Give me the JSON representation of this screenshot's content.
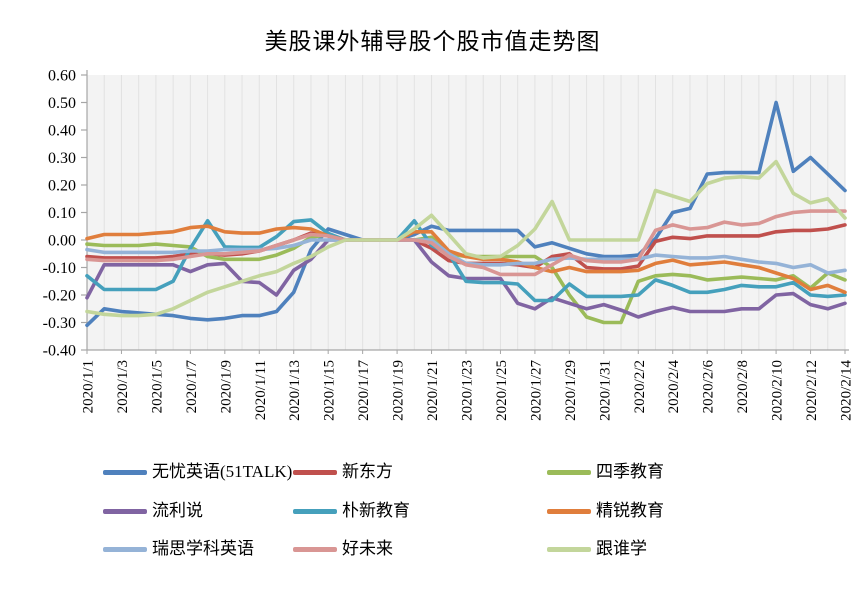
{
  "title": "美股课外辅导股个股市值走势图",
  "chart_data": {
    "type": "line",
    "title": "美股课外辅导股个股市值走势图",
    "xlabel": "",
    "ylabel": "",
    "ylim": [
      -0.4,
      0.6
    ],
    "y_ticks": [
      0.6,
      0.5,
      0.4,
      0.3,
      0.2,
      0.1,
      0.0,
      -0.1,
      -0.2,
      -0.3,
      -0.4
    ],
    "y_tick_labels": [
      "0.60",
      "0.50",
      "0.40",
      "0.30",
      "0.20",
      "0.10",
      "0.00",
      "-0.10",
      "-0.20",
      "-0.30",
      "-0.40"
    ],
    "grid": "vertical-only",
    "legend_position": "bottom",
    "x_label_every": 2,
    "x": [
      "2020/1/1",
      "2020/1/2",
      "2020/1/3",
      "2020/1/4",
      "2020/1/5",
      "2020/1/6",
      "2020/1/7",
      "2020/1/8",
      "2020/1/9",
      "2020/1/10",
      "2020/1/11",
      "2020/1/12",
      "2020/1/13",
      "2020/1/14",
      "2020/1/15",
      "2020/1/16",
      "2020/1/17",
      "2020/1/18",
      "2020/1/19",
      "2020/1/20",
      "2020/1/21",
      "2020/1/22",
      "2020/1/23",
      "2020/1/24",
      "2020/1/25",
      "2020/1/26",
      "2020/1/27",
      "2020/1/28",
      "2020/1/29",
      "2020/1/30",
      "2020/1/31",
      "2020/2/1",
      "2020/2/2",
      "2020/2/3",
      "2020/2/4",
      "2020/2/5",
      "2020/2/6",
      "2020/2/7",
      "2020/2/8",
      "2020/2/9",
      "2020/2/10",
      "2020/2/11",
      "2020/2/12",
      "2020/2/13",
      "2020/2/14"
    ],
    "series": [
      {
        "name": "无忧英语(51TALK)",
        "color": "#4F81BD",
        "values": [
          -0.31,
          -0.25,
          -0.26,
          -0.265,
          -0.27,
          -0.275,
          -0.285,
          -0.29,
          -0.285,
          -0.275,
          -0.275,
          -0.26,
          -0.19,
          -0.035,
          0.04,
          0.02,
          0,
          0,
          0,
          0.02,
          0.05,
          0.035,
          0.035,
          0.035,
          0.035,
          0.035,
          -0.025,
          -0.01,
          -0.03,
          -0.05,
          -0.06,
          -0.06,
          -0.055,
          0.005,
          0.1,
          0.115,
          0.24,
          0.245,
          0.245,
          0.245,
          0.5,
          0.25,
          0.3,
          0.24,
          0.18
        ]
      },
      {
        "name": "新东方",
        "color": "#C0504D",
        "values": [
          -0.06,
          -0.065,
          -0.065,
          -0.065,
          -0.065,
          -0.06,
          -0.05,
          -0.05,
          -0.055,
          -0.05,
          -0.04,
          -0.02,
          0.0,
          0.025,
          0.015,
          0,
          0,
          0,
          0,
          0,
          -0.03,
          -0.075,
          -0.085,
          -0.085,
          -0.085,
          -0.09,
          -0.1,
          -0.06,
          -0.05,
          -0.1,
          -0.105,
          -0.105,
          -0.095,
          -0.005,
          0.01,
          0.005,
          0.015,
          0.015,
          0.015,
          0.015,
          0.03,
          0.035,
          0.035,
          0.04,
          0.055
        ]
      },
      {
        "name": "四季教育",
        "color": "#9BBB59",
        "values": [
          -0.015,
          -0.02,
          -0.02,
          -0.02,
          -0.015,
          -0.02,
          -0.025,
          -0.06,
          -0.07,
          -0.07,
          -0.07,
          -0.055,
          -0.03,
          0.01,
          0.02,
          0,
          0,
          0,
          0,
          0,
          0.01,
          -0.05,
          -0.06,
          -0.06,
          -0.06,
          -0.06,
          -0.06,
          -0.1,
          -0.2,
          -0.28,
          -0.3,
          -0.3,
          -0.15,
          -0.13,
          -0.125,
          -0.13,
          -0.145,
          -0.14,
          -0.135,
          -0.14,
          -0.145,
          -0.13,
          -0.175,
          -0.12,
          -0.145
        ]
      },
      {
        "name": "流利说",
        "color": "#8064A2",
        "values": [
          -0.21,
          -0.09,
          -0.09,
          -0.09,
          -0.09,
          -0.09,
          -0.115,
          -0.09,
          -0.085,
          -0.15,
          -0.155,
          -0.2,
          -0.11,
          -0.07,
          0.0,
          0,
          0,
          0,
          0,
          0,
          -0.08,
          -0.13,
          -0.14,
          -0.14,
          -0.14,
          -0.23,
          -0.25,
          -0.21,
          -0.23,
          -0.25,
          -0.235,
          -0.255,
          -0.28,
          -0.26,
          -0.245,
          -0.26,
          -0.26,
          -0.26,
          -0.25,
          -0.25,
          -0.2,
          -0.195,
          -0.235,
          -0.25,
          -0.23
        ]
      },
      {
        "name": "朴新教育",
        "color": "#45A0BC",
        "values": [
          -0.13,
          -0.18,
          -0.18,
          -0.18,
          -0.18,
          -0.15,
          -0.03,
          0.07,
          -0.025,
          -0.027,
          -0.027,
          0.012,
          0.067,
          0.073,
          0.024,
          0,
          0,
          0,
          0,
          0.07,
          -0.02,
          -0.05,
          -0.15,
          -0.155,
          -0.155,
          -0.16,
          -0.22,
          -0.22,
          -0.16,
          -0.205,
          -0.205,
          -0.205,
          -0.2,
          -0.145,
          -0.165,
          -0.19,
          -0.19,
          -0.18,
          -0.165,
          -0.17,
          -0.17,
          -0.155,
          -0.2,
          -0.205,
          -0.2
        ]
      },
      {
        "name": "精锐教育",
        "color": "#E07E3C",
        "values": [
          0.005,
          0.02,
          0.02,
          0.02,
          0.025,
          0.03,
          0.045,
          0.05,
          0.03,
          0.025,
          0.025,
          0.04,
          0.045,
          0.04,
          0.015,
          0,
          0,
          0,
          0,
          0.03,
          0.03,
          -0.04,
          -0.06,
          -0.07,
          -0.07,
          -0.08,
          -0.1,
          -0.115,
          -0.1,
          -0.115,
          -0.115,
          -0.115,
          -0.11,
          -0.085,
          -0.073,
          -0.09,
          -0.085,
          -0.08,
          -0.09,
          -0.1,
          -0.12,
          -0.14,
          -0.18,
          -0.165,
          -0.19
        ]
      },
      {
        "name": "瑞思学科英语",
        "color": "#95B3D7",
        "values": [
          -0.035,
          -0.045,
          -0.045,
          -0.045,
          -0.045,
          -0.045,
          -0.04,
          -0.04,
          -0.035,
          -0.035,
          -0.035,
          -0.03,
          -0.02,
          0.0,
          0.0,
          0,
          0,
          0,
          0,
          0,
          0.0,
          -0.05,
          -0.085,
          -0.09,
          -0.09,
          -0.085,
          -0.085,
          -0.07,
          -0.065,
          -0.07,
          -0.07,
          -0.07,
          -0.07,
          -0.055,
          -0.06,
          -0.065,
          -0.065,
          -0.06,
          -0.07,
          -0.08,
          -0.085,
          -0.1,
          -0.09,
          -0.12,
          -0.11
        ]
      },
      {
        "name": "好未来",
        "color": "#D99694",
        "values": [
          -0.07,
          -0.075,
          -0.075,
          -0.075,
          -0.075,
          -0.07,
          -0.06,
          -0.05,
          -0.05,
          -0.045,
          -0.04,
          -0.02,
          0.0,
          0.02,
          0.015,
          0,
          0,
          0,
          0,
          0,
          -0.01,
          -0.06,
          -0.09,
          -0.1,
          -0.125,
          -0.125,
          -0.125,
          -0.09,
          -0.055,
          -0.075,
          -0.08,
          -0.08,
          -0.07,
          0.035,
          0.055,
          0.04,
          0.045,
          0.065,
          0.055,
          0.06,
          0.085,
          0.1,
          0.105,
          0.105,
          0.105
        ]
      },
      {
        "name": "跟谁学",
        "color": "#C3D69B",
        "values": [
          -0.26,
          -0.27,
          -0.275,
          -0.275,
          -0.27,
          -0.25,
          -0.22,
          -0.19,
          -0.17,
          -0.15,
          -0.13,
          -0.115,
          -0.085,
          -0.06,
          -0.025,
          0,
          0,
          0,
          0,
          0.04,
          0.09,
          0.02,
          -0.05,
          -0.065,
          -0.06,
          -0.02,
          0.04,
          0.14,
          0.0,
          0.0,
          0.0,
          0.0,
          0.0,
          0.18,
          0.16,
          0.14,
          0.205,
          0.225,
          0.23,
          0.225,
          0.285,
          0.17,
          0.135,
          0.15,
          0.08
        ]
      }
    ]
  },
  "style_colors": {
    "plot_background": "#F3F3F3",
    "gridline": "#E2E2E2",
    "axis": "#A6A6A6",
    "text": "#000000"
  }
}
